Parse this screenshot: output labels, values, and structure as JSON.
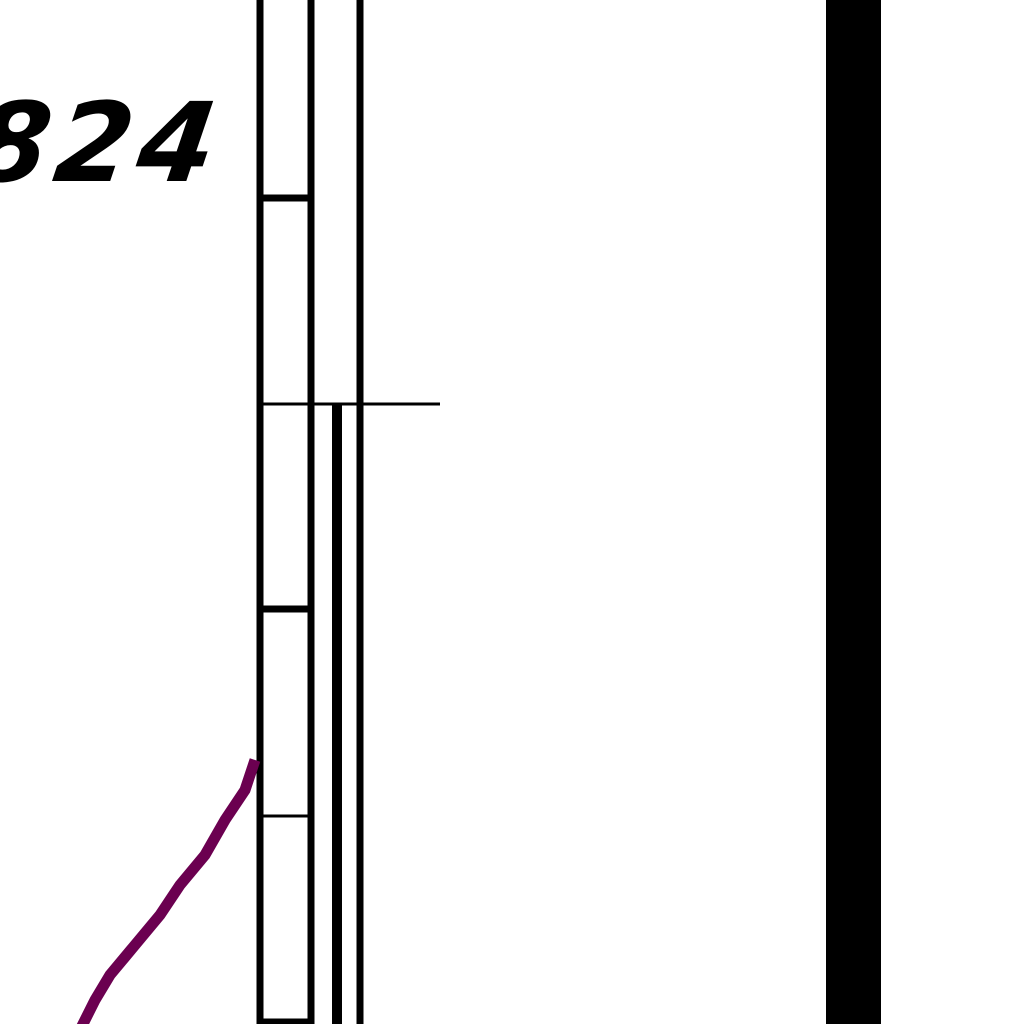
{
  "map": {
    "labels": {
      "feature_number": "824"
    },
    "colors": {
      "background": "#ffffff",
      "ink": "#000000",
      "route_line": "#6b0050"
    },
    "icons": []
  }
}
